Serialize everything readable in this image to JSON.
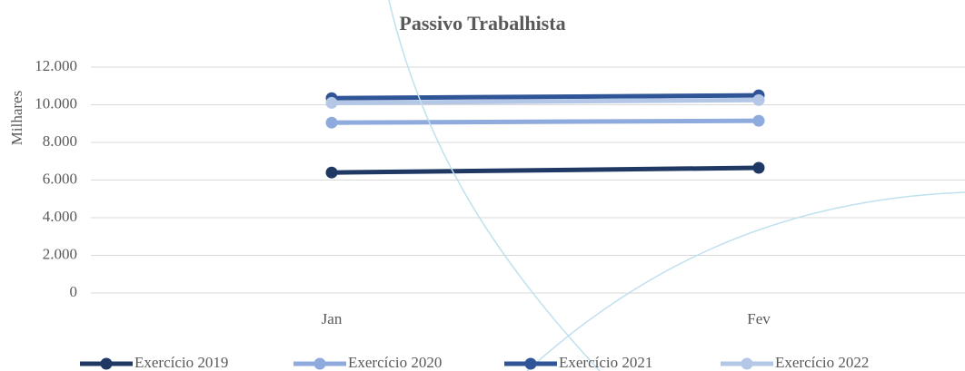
{
  "chart_data": {
    "type": "line",
    "title": "Passivo Trabalhista",
    "y_label": "Milhares",
    "categories": [
      "Jan",
      "Fev"
    ],
    "series": [
      {
        "name": "Exercício 2019",
        "color": "#1f3864",
        "values": [
          6400,
          6650
        ]
      },
      {
        "name": "Exercício 2020",
        "color": "#8faadc",
        "values": [
          9050,
          9150
        ]
      },
      {
        "name": "Exercício 2021",
        "color": "#2f5597",
        "values": [
          10350,
          10500
        ]
      },
      {
        "name": "Exercício 2022",
        "color": "#b4c7e7",
        "values": [
          10100,
          10250
        ]
      }
    ],
    "ylim": [
      0,
      12000
    ],
    "yticks": [
      {
        "value": 0,
        "label": "0"
      },
      {
        "value": 2000,
        "label": "2.000"
      },
      {
        "value": 4000,
        "label": "4.000"
      },
      {
        "value": 6000,
        "label": "6.000"
      },
      {
        "value": 8000,
        "label": "8.000"
      },
      {
        "value": 10000,
        "label": "10.000"
      },
      {
        "value": 12000,
        "label": "12.000"
      }
    ],
    "grid": true,
    "legend": "bottom"
  }
}
